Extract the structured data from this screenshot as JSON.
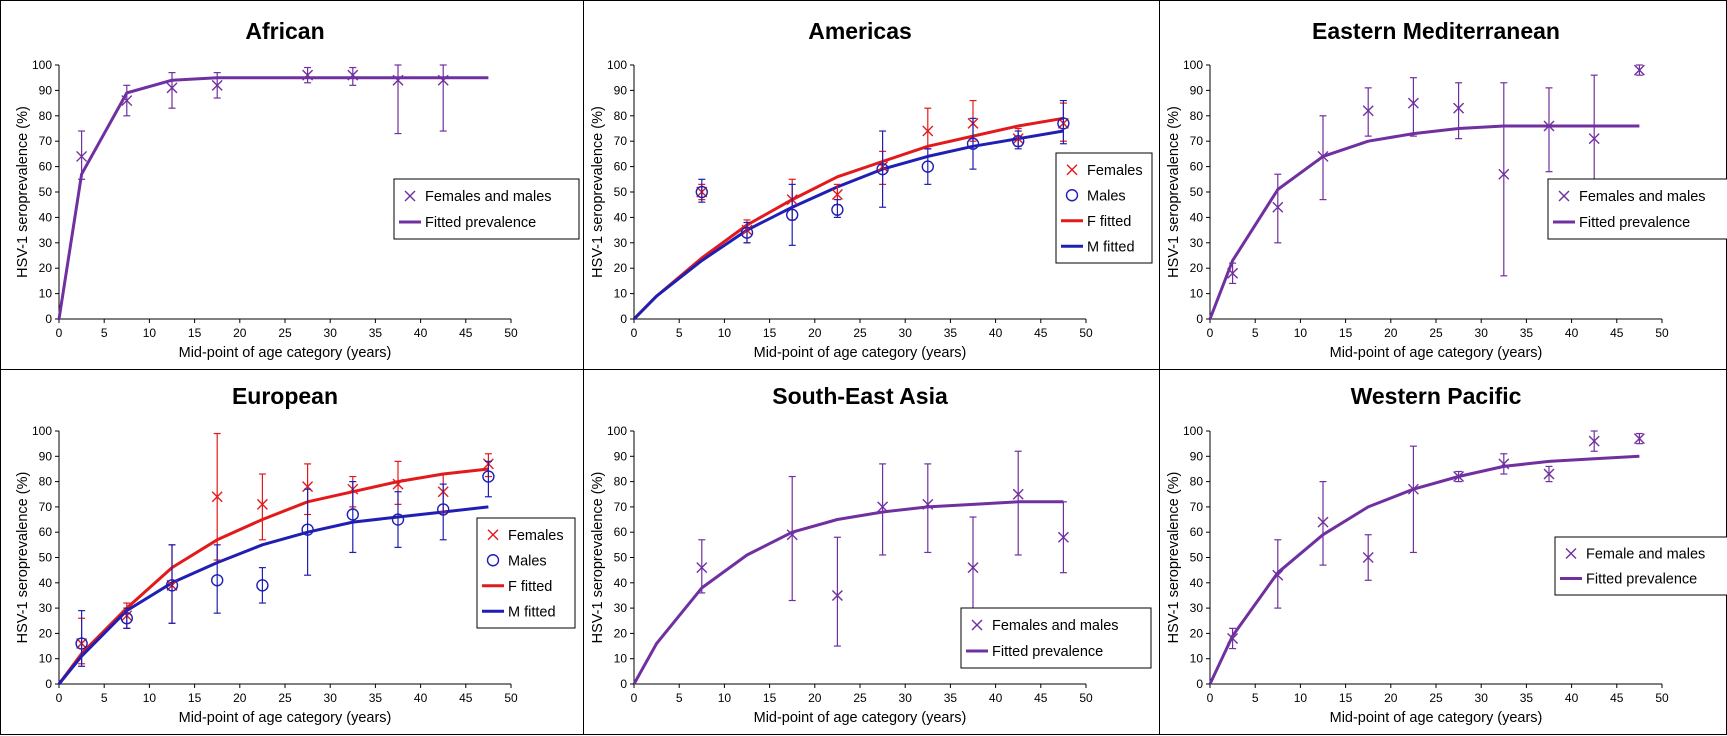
{
  "colors": {
    "purple": "#7030a0",
    "red": "#e31a1c",
    "blue": "#1f1fb4",
    "axis": "#000000",
    "border": "#000000"
  },
  "chart_data": [
    {
      "type": "scatter",
      "title": "African",
      "xlabel": "Mid-point of age category (years)",
      "ylabel": "HSV-1 seroprevalence (%)",
      "xlim": [
        0,
        50
      ],
      "ylim": [
        0,
        100
      ],
      "xticks": [
        "0",
        "5",
        "10",
        "15",
        "20",
        "25",
        "30",
        "35",
        "40",
        "45",
        "50"
      ],
      "yticks": [
        "0",
        "10",
        "20",
        "30",
        "40",
        "50",
        "60",
        "70",
        "80",
        "90",
        "100"
      ],
      "legend": {
        "position": "middle-right",
        "entries": [
          {
            "label": "Females and males",
            "kind": "marker-x",
            "color": "purple"
          },
          {
            "label": "Fitted prevalence",
            "kind": "line",
            "color": "purple"
          }
        ]
      },
      "series": [
        {
          "name": "Females and males",
          "kind": "points",
          "marker": "x",
          "color": "purple",
          "x": [
            2.5,
            7.5,
            12.5,
            17.5,
            27.5,
            32.5,
            37.5,
            42.5
          ],
          "y": [
            64,
            86,
            91,
            92,
            96,
            96,
            94,
            94
          ],
          "err_low": [
            55,
            80,
            83,
            87,
            93,
            92,
            73,
            74
          ],
          "err_high": [
            74,
            92,
            97,
            97,
            99,
            99,
            100,
            100
          ]
        },
        {
          "name": "Fitted prevalence",
          "kind": "line",
          "color": "purple",
          "x": [
            0,
            2.5,
            7.5,
            12.5,
            17.5,
            22.5,
            27.5,
            32.5,
            37.5,
            42.5,
            47.5
          ],
          "y": [
            0,
            57,
            89,
            94,
            95,
            95,
            95,
            95,
            95,
            95,
            95
          ]
        }
      ]
    },
    {
      "type": "scatter",
      "title": "Americas",
      "xlabel": "Mid-point of age category (years)",
      "ylabel": "HSV-1 seroprevalence (%)",
      "xlim": [
        0,
        50
      ],
      "ylim": [
        0,
        100
      ],
      "xticks": [
        "0",
        "5",
        "10",
        "15",
        "20",
        "25",
        "30",
        "35",
        "40",
        "45",
        "50"
      ],
      "yticks": [
        "0",
        "10",
        "20",
        "30",
        "40",
        "50",
        "60",
        "70",
        "80",
        "90",
        "100"
      ],
      "legend": {
        "position": "right",
        "entries": [
          {
            "label": "Females",
            "kind": "marker-x",
            "color": "red"
          },
          {
            "label": "Males",
            "kind": "marker-o",
            "color": "blue"
          },
          {
            "label": "F fitted",
            "kind": "line",
            "color": "red"
          },
          {
            "label": "M fitted",
            "kind": "line",
            "color": "blue"
          }
        ]
      },
      "series": [
        {
          "name": "Females",
          "kind": "points",
          "marker": "x",
          "color": "red",
          "x": [
            7.5,
            12.5,
            17.5,
            22.5,
            27.5,
            32.5,
            37.5,
            42.5,
            47.5
          ],
          "y": [
            50,
            35,
            47,
            49,
            60,
            74,
            77,
            71,
            77
          ],
          "err_low": [
            47,
            30,
            39,
            45,
            53,
            67,
            70,
            68,
            70
          ],
          "err_high": [
            53,
            39,
            55,
            53,
            66,
            83,
            86,
            75,
            85
          ]
        },
        {
          "name": "Males",
          "kind": "points",
          "marker": "o",
          "color": "blue",
          "x": [
            7.5,
            12.5,
            17.5,
            22.5,
            27.5,
            32.5,
            37.5,
            42.5,
            47.5
          ],
          "y": [
            50,
            34,
            41,
            43,
            59,
            60,
            69,
            70,
            77
          ],
          "err_low": [
            46,
            30,
            29,
            40,
            44,
            53,
            59,
            67,
            69
          ],
          "err_high": [
            55,
            38,
            53,
            47,
            74,
            67,
            79,
            74,
            86
          ]
        },
        {
          "name": "F fitted",
          "kind": "line",
          "color": "red",
          "x": [
            0,
            2.5,
            7.5,
            12.5,
            17.5,
            22.5,
            27.5,
            32.5,
            37.5,
            42.5,
            47.5
          ],
          "y": [
            0,
            9,
            24,
            37,
            47,
            56,
            62,
            68,
            72,
            76,
            79
          ]
        },
        {
          "name": "M fitted",
          "kind": "line",
          "color": "blue",
          "x": [
            0,
            2.5,
            7.5,
            12.5,
            17.5,
            22.5,
            27.5,
            32.5,
            37.5,
            42.5,
            47.5
          ],
          "y": [
            0,
            9,
            23,
            35,
            44,
            52,
            59,
            64,
            68,
            71,
            74
          ]
        }
      ]
    },
    {
      "type": "scatter",
      "title": "Eastern Mediterranean",
      "xlabel": "Mid-point of age category (years)",
      "ylabel": "HSV-1 seroprevalence (%)",
      "xlim": [
        0,
        50
      ],
      "ylim": [
        0,
        100
      ],
      "xticks": [
        "0",
        "5",
        "10",
        "15",
        "20",
        "25",
        "30",
        "35",
        "40",
        "45",
        "50"
      ],
      "yticks": [
        "0",
        "10",
        "20",
        "30",
        "40",
        "50",
        "60",
        "70",
        "80",
        "90",
        "100"
      ],
      "legend": {
        "position": "right",
        "entries": [
          {
            "label": "Females and males",
            "kind": "marker-x",
            "color": "purple"
          },
          {
            "label": "Fitted prevalence",
            "kind": "line",
            "color": "purple"
          }
        ]
      },
      "series": [
        {
          "name": "Females and males",
          "kind": "points",
          "marker": "x",
          "color": "purple",
          "x": [
            2.5,
            7.5,
            12.5,
            17.5,
            22.5,
            27.5,
            32.5,
            37.5,
            42.5,
            47.5
          ],
          "y": [
            18,
            44,
            64,
            82,
            85,
            83,
            57,
            76,
            71,
            98
          ],
          "err_low": [
            14,
            30,
            47,
            72,
            72,
            71,
            17,
            58,
            45,
            96
          ],
          "err_high": [
            22,
            57,
            80,
            91,
            95,
            93,
            93,
            91,
            96,
            100
          ]
        },
        {
          "name": "Fitted prevalence",
          "kind": "line",
          "color": "purple",
          "x": [
            0,
            2.5,
            7.5,
            12.5,
            17.5,
            22.5,
            27.5,
            32.5,
            37.5,
            42.5,
            47.5
          ],
          "y": [
            0,
            23,
            51,
            64,
            70,
            73,
            75,
            76,
            76,
            76,
            76
          ]
        }
      ]
    },
    {
      "type": "scatter",
      "title": "European",
      "xlabel": "Mid-point of age category (years)",
      "ylabel": "HSV-1 seroprevalence (%)",
      "xlim": [
        0,
        50
      ],
      "ylim": [
        0,
        100
      ],
      "xticks": [
        "0",
        "5",
        "10",
        "15",
        "20",
        "25",
        "30",
        "35",
        "40",
        "45",
        "50"
      ],
      "yticks": [
        "0",
        "10",
        "20",
        "30",
        "40",
        "50",
        "60",
        "70",
        "80",
        "90",
        "100"
      ],
      "legend": {
        "position": "right",
        "entries": [
          {
            "label": "Females",
            "kind": "marker-x",
            "color": "red"
          },
          {
            "label": "Males",
            "kind": "marker-o",
            "color": "blue"
          },
          {
            "label": "F fitted",
            "kind": "line",
            "color": "red"
          },
          {
            "label": "M fitted",
            "kind": "line",
            "color": "blue"
          }
        ]
      },
      "series": [
        {
          "name": "Females",
          "kind": "points",
          "marker": "x",
          "color": "red",
          "x": [
            2.5,
            7.5,
            12.5,
            17.5,
            22.5,
            27.5,
            32.5,
            37.5,
            42.5,
            47.5
          ],
          "y": [
            16,
            27,
            39,
            74,
            71,
            78,
            77,
            79,
            76,
            87
          ],
          "err_low": [
            8,
            22,
            24,
            49,
            57,
            67,
            70,
            71,
            68,
            82
          ],
          "err_high": [
            26,
            32,
            55,
            99,
            83,
            87,
            82,
            88,
            83,
            91
          ]
        },
        {
          "name": "Males",
          "kind": "points",
          "marker": "o",
          "color": "blue",
          "x": [
            2.5,
            7.5,
            12.5,
            17.5,
            22.5,
            27.5,
            32.5,
            37.5,
            42.5,
            47.5
          ],
          "y": [
            16,
            26,
            39,
            41,
            39,
            61,
            67,
            65,
            69,
            82
          ],
          "err_low": [
            7,
            22,
            24,
            28,
            32,
            43,
            52,
            54,
            57,
            74
          ],
          "err_high": [
            29,
            30,
            55,
            55,
            46,
            77,
            80,
            76,
            79,
            88
          ]
        },
        {
          "name": "F fitted",
          "kind": "line",
          "color": "red",
          "x": [
            0,
            2.5,
            7.5,
            12.5,
            17.5,
            22.5,
            27.5,
            32.5,
            37.5,
            42.5,
            47.5
          ],
          "y": [
            0,
            12,
            30,
            46,
            57,
            65,
            72,
            76,
            80,
            83,
            85
          ]
        },
        {
          "name": "M fitted",
          "kind": "line",
          "color": "blue",
          "x": [
            0,
            2.5,
            7.5,
            12.5,
            17.5,
            22.5,
            27.5,
            32.5,
            37.5,
            42.5,
            47.5
          ],
          "y": [
            0,
            11,
            29,
            40,
            48,
            55,
            60,
            64,
            66,
            68,
            70
          ]
        }
      ]
    },
    {
      "type": "scatter",
      "title": "South-East Asia",
      "xlabel": "Mid-point of age category (years)",
      "ylabel": "HSV-1 seroprevalence (%)",
      "xlim": [
        0,
        50
      ],
      "ylim": [
        0,
        100
      ],
      "xticks": [
        "0",
        "5",
        "10",
        "15",
        "20",
        "25",
        "30",
        "35",
        "40",
        "45",
        "50"
      ],
      "yticks": [
        "0",
        "10",
        "20",
        "30",
        "40",
        "50",
        "60",
        "70",
        "80",
        "90",
        "100"
      ],
      "legend": {
        "position": "bottom-right",
        "entries": [
          {
            "label": "Females and males",
            "kind": "marker-x",
            "color": "purple"
          },
          {
            "label": "Fitted prevalence",
            "kind": "line",
            "color": "purple"
          }
        ]
      },
      "series": [
        {
          "name": "Females and males",
          "kind": "points",
          "marker": "x",
          "color": "purple",
          "x": [
            7.5,
            17.5,
            22.5,
            27.5,
            32.5,
            37.5,
            42.5,
            47.5
          ],
          "y": [
            46,
            59,
            35,
            70,
            71,
            46,
            75,
            58
          ],
          "err_low": [
            36,
            33,
            15,
            51,
            52,
            26,
            51,
            44
          ],
          "err_high": [
            57,
            82,
            58,
            87,
            87,
            66,
            92,
            72
          ]
        },
        {
          "name": "Fitted prevalence",
          "kind": "line",
          "color": "purple",
          "x": [
            0,
            2.5,
            7.5,
            12.5,
            17.5,
            22.5,
            27.5,
            32.5,
            37.5,
            42.5,
            47.5
          ],
          "y": [
            0,
            16,
            38,
            51,
            60,
            65,
            68,
            70,
            71,
            72,
            72
          ]
        }
      ]
    },
    {
      "type": "scatter",
      "title": "Western Pacific",
      "xlabel": "Mid-point of age category (years)",
      "ylabel": "HSV-1 seroprevalence (%)",
      "xlim": [
        0,
        50
      ],
      "ylim": [
        0,
        100
      ],
      "xticks": [
        "0",
        "5",
        "10",
        "15",
        "20",
        "25",
        "30",
        "35",
        "40",
        "45",
        "50"
      ],
      "yticks": [
        "0",
        "10",
        "20",
        "30",
        "40",
        "50",
        "60",
        "70",
        "80",
        "90",
        "100"
      ],
      "legend": {
        "position": "right",
        "entries": [
          {
            "label": "Female and males",
            "kind": "marker-x",
            "color": "purple"
          },
          {
            "label": "Fitted prevalence",
            "kind": "line",
            "color": "purple"
          }
        ]
      },
      "series": [
        {
          "name": "Female and males",
          "kind": "points",
          "marker": "x",
          "color": "purple",
          "x": [
            2.5,
            7.5,
            12.5,
            17.5,
            22.5,
            27.5,
            32.5,
            37.5,
            42.5,
            47.5
          ],
          "y": [
            18,
            43,
            64,
            50,
            77,
            82,
            87,
            83,
            96,
            97
          ],
          "err_low": [
            14,
            30,
            47,
            41,
            52,
            80,
            83,
            80,
            92,
            95
          ],
          "err_high": [
            22,
            57,
            80,
            59,
            94,
            84,
            91,
            86,
            100,
            99
          ]
        },
        {
          "name": "Fitted prevalence",
          "kind": "line",
          "color": "purple",
          "x": [
            0,
            2.5,
            7.5,
            12.5,
            17.5,
            22.5,
            27.5,
            32.5,
            37.5,
            42.5,
            47.5
          ],
          "y": [
            0,
            19,
            44,
            59,
            70,
            77,
            82,
            86,
            88,
            89,
            90
          ]
        }
      ]
    }
  ]
}
